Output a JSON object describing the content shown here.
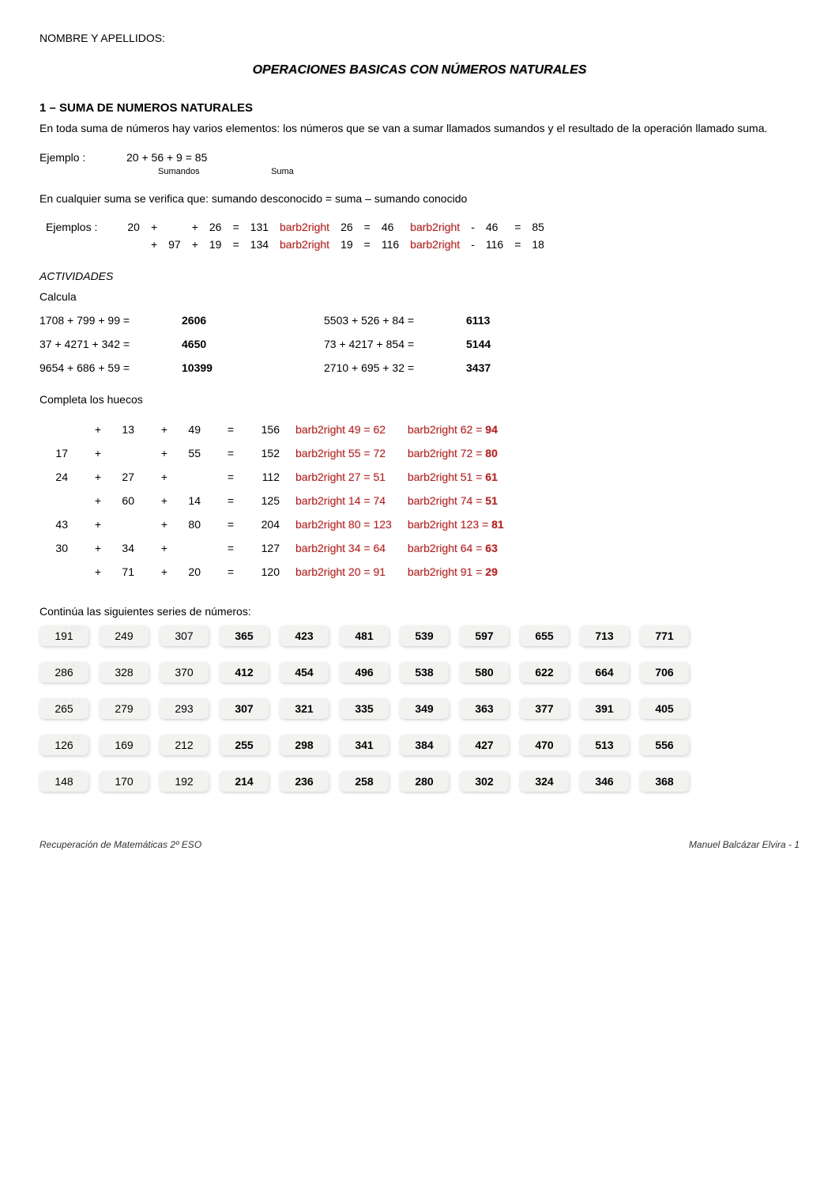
{
  "header_name": "NOMBRE Y APELLIDOS:",
  "title": "OPERACIONES BASICAS CON NÚMEROS NATURALES",
  "section1_title": "1 – SUMA DE NUMEROS NATURALES",
  "intro_para": "En toda suma de números hay varios elementos: los números que se van a sumar llamados sumandos y el resultado de la operación llamado suma.",
  "ejemplo_label": "Ejemplo :",
  "ejemplo_expr": "20 + 56 + 9 = 85",
  "sumandos_label": "Sumandos",
  "suma_label": "Suma",
  "rule_text": "En cualquier suma se verifica que: sumando desconocido = suma – sumando conocido",
  "ejemplos_label": "Ejemplos :",
  "ex2_row1": [
    "20",
    "+",
    "",
    "+",
    "26",
    "=",
    "131",
    "barb2right",
    "26",
    "=",
    "46",
    "barb2right",
    "-",
    "46",
    "=",
    "85"
  ],
  "ex2_row2": [
    "",
    "+",
    "97",
    "+",
    "19",
    "=",
    "134",
    "barb2right",
    "19",
    "=",
    "116",
    "barb2right",
    "-",
    "116",
    "=",
    "18"
  ],
  "actividades_label": "ACTIVIDADES",
  "calcula_label": "Calcula",
  "calc": [
    {
      "l": "1708 + 799 + 99  =",
      "la": "2606",
      "r": "5503 + 526 + 84  =",
      "ra": "6113"
    },
    {
      "l": "37 + 4271 + 342  =",
      "la": "4650",
      "r": "73 + 4217 + 854  =",
      "ra": "5144"
    },
    {
      "l": "9654 + 686 + 59  =",
      "la": "10399",
      "r": "2710 + 695 + 32  =",
      "ra": "3437"
    }
  ],
  "huecos_label": "Completa los huecos",
  "huecos": [
    {
      "a": "",
      "b": "13",
      "c": "49",
      "r": "156",
      "m1": "barb2right",
      "m1b": "49",
      "m1c": "62",
      "m2": "barb2right",
      "m2b": "62",
      "ans": "94"
    },
    {
      "a": "17",
      "b": "",
      "c": "55",
      "r": "152",
      "m1": "barb2right",
      "m1b": "55",
      "m1c": "72",
      "m2": "barb2right",
      "m2b": "72",
      "ans": "80"
    },
    {
      "a": "24",
      "b": "27",
      "c": "",
      "r": "112",
      "m1": "barb2right",
      "m1b": "27",
      "m1c": "51",
      "m2": "barb2right",
      "m2b": "51",
      "ans": "61"
    },
    {
      "a": "",
      "b": "60",
      "c": "14",
      "r": "125",
      "m1": "barb2right",
      "m1b": "14",
      "m1c": "74",
      "m2": "barb2right",
      "m2b": "74",
      "ans": "51"
    },
    {
      "a": "43",
      "b": "",
      "c": "80",
      "r": "204",
      "m1": "barb2right",
      "m1b": "80",
      "m1c": "123",
      "m2": "barb2right",
      "m2b": "123",
      "ans": "81"
    },
    {
      "a": "30",
      "b": "34",
      "c": "",
      "r": "127",
      "m1": "barb2right",
      "m1b": "34",
      "m1c": "64",
      "m2": "barb2right",
      "m2b": "64",
      "ans": "63"
    },
    {
      "a": "",
      "b": "71",
      "c": "20",
      "r": "120",
      "m1": "barb2right",
      "m1b": "20",
      "m1c": "91",
      "m2": "barb2right",
      "m2b": "91",
      "ans": "29"
    }
  ],
  "series_label": "Continúa las siguientes series de números:",
  "series": [
    {
      "step": "+ 58",
      "given": 3,
      "vals": [
        "191",
        "249",
        "307",
        "365",
        "423",
        "481",
        "539",
        "597",
        "655",
        "713",
        "771"
      ]
    },
    {
      "step": "+ 42",
      "given": 3,
      "vals": [
        "286",
        "328",
        "370",
        "412",
        "454",
        "496",
        "538",
        "580",
        "622",
        "664",
        "706"
      ]
    },
    {
      "step": "+ 14",
      "given": 3,
      "vals": [
        "265",
        "279",
        "293",
        "307",
        "321",
        "335",
        "349",
        "363",
        "377",
        "391",
        "405"
      ]
    },
    {
      "step": "+ 43",
      "given": 3,
      "vals": [
        "126",
        "169",
        "212",
        "255",
        "298",
        "341",
        "384",
        "427",
        "470",
        "513",
        "556"
      ]
    },
    {
      "step": "+ 22",
      "given": 3,
      "vals": [
        "148",
        "170",
        "192",
        "214",
        "236",
        "258",
        "280",
        "302",
        "324",
        "346",
        "368"
      ]
    }
  ],
  "footer_left": "Recuperación de Matemáticas 2º ESO",
  "footer_right": "Manuel Balcázar Elvira - 1"
}
